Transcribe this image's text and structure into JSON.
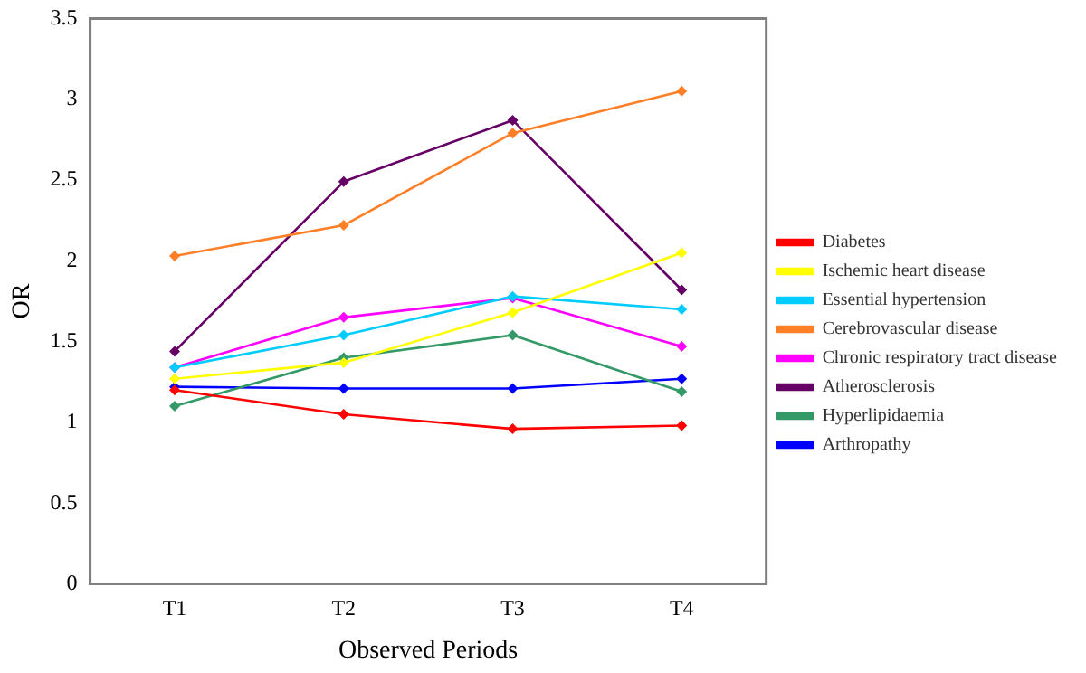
{
  "chart_data": {
    "type": "line",
    "xlabel": "Observed Periods",
    "ylabel": "OR",
    "categories": [
      "T1",
      "T2",
      "T3",
      "T4"
    ],
    "series": [
      {
        "name": "Diabetes",
        "color": "#ff0000",
        "values": [
          1.2,
          1.05,
          0.96,
          0.98
        ]
      },
      {
        "name": "Ischemic heart disease",
        "color": "#ffff00",
        "values": [
          1.27,
          1.37,
          1.68,
          2.05
        ]
      },
      {
        "name": "Essential hypertension",
        "color": "#00ccff",
        "values": [
          1.34,
          1.54,
          1.78,
          1.7
        ]
      },
      {
        "name": "Cerebrovascular disease",
        "color": "#ff7f27",
        "values": [
          2.03,
          2.22,
          2.79,
          3.05
        ]
      },
      {
        "name": "Chronic respiratory tract disease",
        "color": "#ff00ff",
        "values": [
          1.34,
          1.65,
          1.77,
          1.47
        ]
      },
      {
        "name": "Atherosclerosis",
        "color": "#660066",
        "values": [
          1.44,
          2.49,
          2.87,
          1.82
        ]
      },
      {
        "name": "Hyperlipidaemia",
        "color": "#339966",
        "values": [
          1.1,
          1.4,
          1.54,
          1.19
        ]
      },
      {
        "name": "Arthropathy",
        "color": "#0000ff",
        "values": [
          1.22,
          1.21,
          1.21,
          1.27
        ]
      }
    ],
    "ylim": [
      0,
      3.5
    ],
    "yticks": [
      0,
      0.5,
      1,
      1.5,
      2,
      2.5,
      3,
      3.5
    ],
    "grid": false,
    "legend": "right",
    "marker": "diamond",
    "line_style": "solid"
  }
}
